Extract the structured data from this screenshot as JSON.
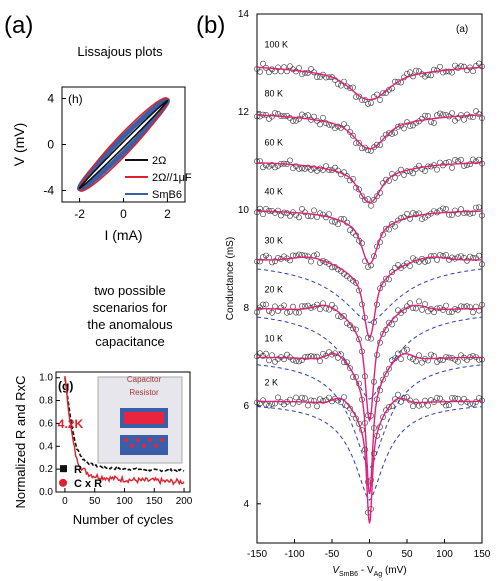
{
  "panels": {
    "a": "(a)",
    "b": "(b)"
  },
  "lissajous_title": "Lissajous plots",
  "scenario_text": [
    "two possible",
    "scenarios for",
    "the anomalous",
    "capacitance"
  ],
  "chart_data": [
    {
      "type": "line",
      "panel_tag": "(h)",
      "xlabel": "I (mA)",
      "ylabel": "V (mV)",
      "xlim": [
        -2.8,
        2.8
      ],
      "ylim": [
        -5,
        5
      ],
      "xticks": [
        -2,
        0,
        2
      ],
      "yticks": [
        4,
        0,
        -4
      ],
      "xtick_labels": [
        "-2",
        "0",
        "2"
      ],
      "ytick_labels": [
        "4",
        "0",
        "-4"
      ],
      "legend_position": "right",
      "series": [
        {
          "name": "2Ω",
          "color": "#111111",
          "slope": 1.9,
          "half_width": 0.25
        },
        {
          "name": "2Ω//1μF",
          "color": "#e0202a",
          "slope": 1.95,
          "half_width": 1.1
        },
        {
          "name": "SmB6",
          "color": "#3a5fa8",
          "slope": 1.9,
          "half_width": 0.7
        }
      ]
    },
    {
      "type": "line",
      "panel_tag": "(g)",
      "xlabel": "Number of cycles",
      "ylabel": "Normalized R and RxC",
      "xlim": [
        -15,
        210
      ],
      "ylim": [
        0,
        1.05
      ],
      "xticks": [
        0,
        50,
        100,
        150,
        200
      ],
      "yticks": [
        0.0,
        0.2,
        0.4,
        0.6,
        0.8,
        1.0
      ],
      "xtick_labels": [
        "0",
        "50",
        "100",
        "150",
        "200"
      ],
      "ytick_labels": [
        "0.0",
        "0.2",
        "0.4",
        "0.6",
        "0.8",
        "1.0"
      ],
      "annotation": "4.2K",
      "inset_labels": {
        "capacitor": "Capacitor",
        "resistor": "Resistor"
      },
      "legend_position": "bottom-left",
      "series": [
        {
          "name": "R",
          "color": "#111111",
          "x": [
            0,
            5,
            10,
            15,
            20,
            30,
            40,
            50,
            75,
            100,
            125,
            150,
            175,
            200
          ],
          "y": [
            1.0,
            0.82,
            0.62,
            0.48,
            0.38,
            0.29,
            0.25,
            0.23,
            0.21,
            0.2,
            0.2,
            0.19,
            0.19,
            0.19
          ]
        },
        {
          "name": "C x R",
          "color": "#e0202a",
          "x": [
            0,
            5,
            10,
            15,
            20,
            30,
            40,
            50,
            75,
            100,
            125,
            150,
            175,
            200
          ],
          "y": [
            1.0,
            0.78,
            0.56,
            0.4,
            0.28,
            0.2,
            0.16,
            0.14,
            0.12,
            0.11,
            0.1,
            0.1,
            0.09,
            0.09
          ]
        }
      ]
    },
    {
      "type": "scatter",
      "panel_tag": "(a)",
      "xlabel": "V_SmB6 - V_Ag (mV)",
      "xlabel_parts": {
        "v1": "V",
        "s1": "SmB6",
        "mid": " - V",
        "s2": "Ag",
        "unit": " (mV)"
      },
      "ylabel": "Conductance (mS)",
      "xlim": [
        -150,
        150
      ],
      "ylim": [
        3.2,
        14
      ],
      "xticks": [
        -150,
        -100,
        -50,
        0,
        50,
        100,
        150
      ],
      "yticks": [
        4,
        6,
        8,
        10,
        12,
        14
      ],
      "xtick_labels": [
        "-150",
        "-100",
        "-50",
        "0",
        "50",
        "100",
        "150"
      ],
      "ytick_labels": [
        "4",
        "6",
        "8",
        "10",
        "12",
        "14"
      ],
      "fit_color": "#e0207a",
      "dashed_color": "#2a3fbf",
      "series": [
        {
          "name": "100 K",
          "base": 13.0,
          "depth": 0.75,
          "width": 90,
          "dash": false
        },
        {
          "name": "80 K",
          "base": 12.0,
          "depth": 0.75,
          "width": 70,
          "dash": false
        },
        {
          "name": "60 K",
          "base": 11.0,
          "depth": 0.85,
          "width": 50,
          "dash": false
        },
        {
          "name": "40 K",
          "base": 10.0,
          "depth": 1.1,
          "width": 35,
          "dash": false
        },
        {
          "name": "30 K",
          "base": 9.0,
          "depth": 1.6,
          "width": 25,
          "dash": true
        },
        {
          "name": "20 K",
          "base": 8.0,
          "depth": 2.3,
          "width": 18,
          "dash": true
        },
        {
          "name": "10 K",
          "base": 7.0,
          "depth": 2.8,
          "width": 14,
          "dash": true
        },
        {
          "name": "2 K",
          "base": 6.1,
          "depth": 2.5,
          "width": 12,
          "dash": true
        }
      ]
    }
  ]
}
